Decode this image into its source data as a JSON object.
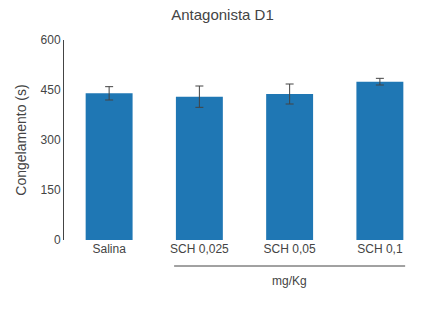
{
  "chart_data": {
    "type": "bar",
    "title": "Antagonista D1",
    "categories": [
      "Salina",
      "SCH 0,025",
      "SCH 0,05",
      "SCH 0,1"
    ],
    "values": [
      440,
      430,
      438,
      475
    ],
    "errors": [
      20,
      32,
      30,
      10
    ],
    "ylabel": "Congelamento (s)",
    "xlabel": "mg/Kg",
    "ylim": [
      0,
      600
    ],
    "yticks": [
      0,
      150,
      300,
      450,
      600
    ],
    "grid": false
  }
}
